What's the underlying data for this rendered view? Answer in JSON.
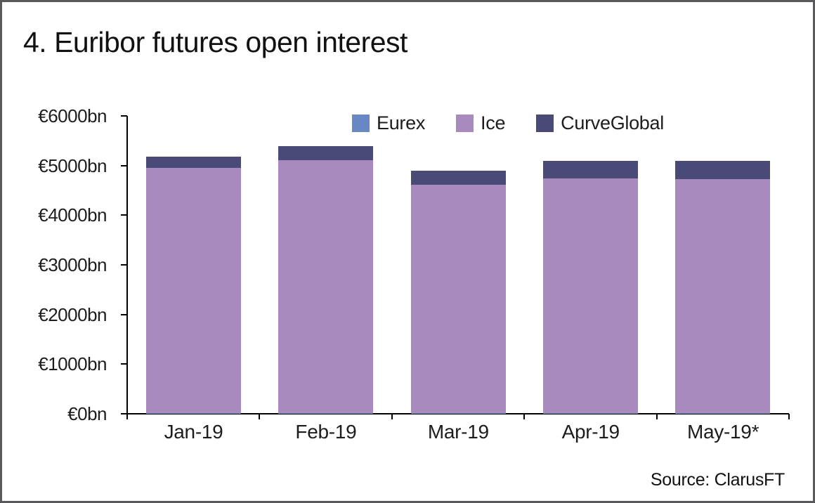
{
  "title": "4. Euribor futures open interest",
  "source": "Source: ClarusFT",
  "colors": {
    "eurex": "#6787c5",
    "ice": "#a98abe",
    "curveglobal": "#4a4a78",
    "axis": "#000000",
    "frame_border": "#59595b",
    "text": "#1d1d1b"
  },
  "chart_data": {
    "type": "bar",
    "stacked": true,
    "title": "4. Euribor futures open interest",
    "categories": [
      "Jan-19",
      "Feb-19",
      "Mar-19",
      "Apr-19",
      "May-19*"
    ],
    "series": [
      {
        "name": "Eurex",
        "color": "#6787c5",
        "values": [
          20,
          20,
          20,
          20,
          20
        ]
      },
      {
        "name": "Ice",
        "color": "#a98abe",
        "values": [
          4930,
          5090,
          4600,
          4720,
          4700
        ]
      },
      {
        "name": "CurveGlobal",
        "color": "#4a4a78",
        "values": [
          230,
          280,
          270,
          350,
          370
        ]
      }
    ],
    "totals": [
      5180,
      5390,
      4890,
      5090,
      5090
    ],
    "ylabel": "",
    "xlabel": "",
    "ylim": [
      0,
      6000
    ],
    "ytick_interval": 1000,
    "ytick_labels": [
      "€0bn",
      "€1000bn",
      "€2000bn",
      "€3000bn",
      "€4000bn",
      "€5000bn",
      "€6000bn"
    ],
    "grid": false,
    "legend_position": "top-center"
  }
}
